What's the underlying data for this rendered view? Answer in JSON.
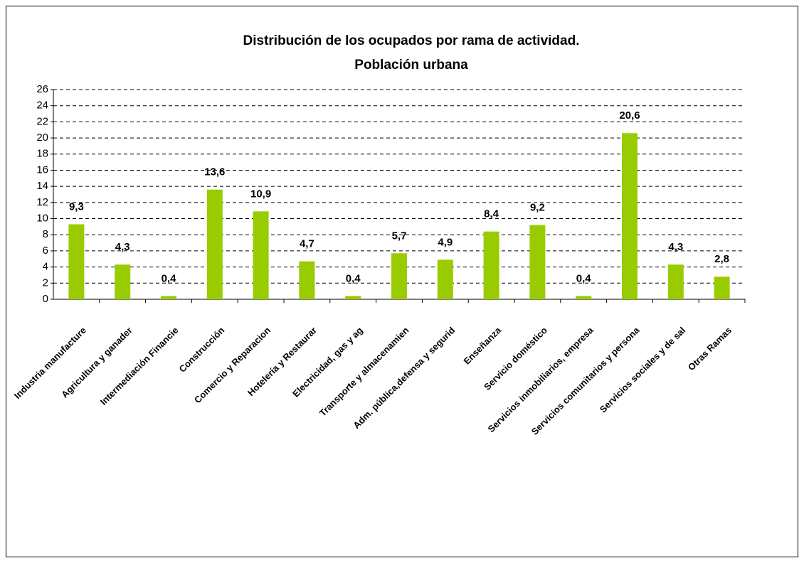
{
  "chart_data": {
    "type": "bar",
    "title": [
      "Distribución de los ocupados por rama de actividad.",
      "Población urbana"
    ],
    "categories": [
      "Industria manufacture",
      "Agricultura y ganader",
      "Intermediación Financie",
      "Construcción",
      "Comercio y Reparacion",
      "Hotelería y Restaurar",
      "Electricidad, gas y ag",
      "Transporte y almacenamien",
      "Adm. pública,defensa y segurid",
      "Enseñanza",
      "Servicio doméstico",
      "Servicios inmobiliarios, empresa",
      "Servicios comunitarios y persona",
      "Servicios sociales y de sal",
      "Otras Ramas"
    ],
    "values": [
      9.3,
      4.3,
      0.4,
      13.6,
      10.9,
      4.7,
      0.4,
      5.7,
      4.9,
      8.4,
      9.2,
      0.4,
      20.6,
      4.3,
      2.8
    ],
    "value_labels": [
      "9,3",
      "4,3",
      "0,4",
      "13,6",
      "10,9",
      "4,7",
      "0,4",
      "5,7",
      "4,9",
      "8,4",
      "9,2",
      "0,4",
      "20,6",
      "4,3",
      "2,8"
    ],
    "color": "#99cc00",
    "ylim": [
      0,
      26
    ],
    "yticks": [
      0,
      2,
      4,
      6,
      8,
      10,
      12,
      14,
      16,
      18,
      20,
      22,
      24,
      26
    ],
    "grid": true
  }
}
